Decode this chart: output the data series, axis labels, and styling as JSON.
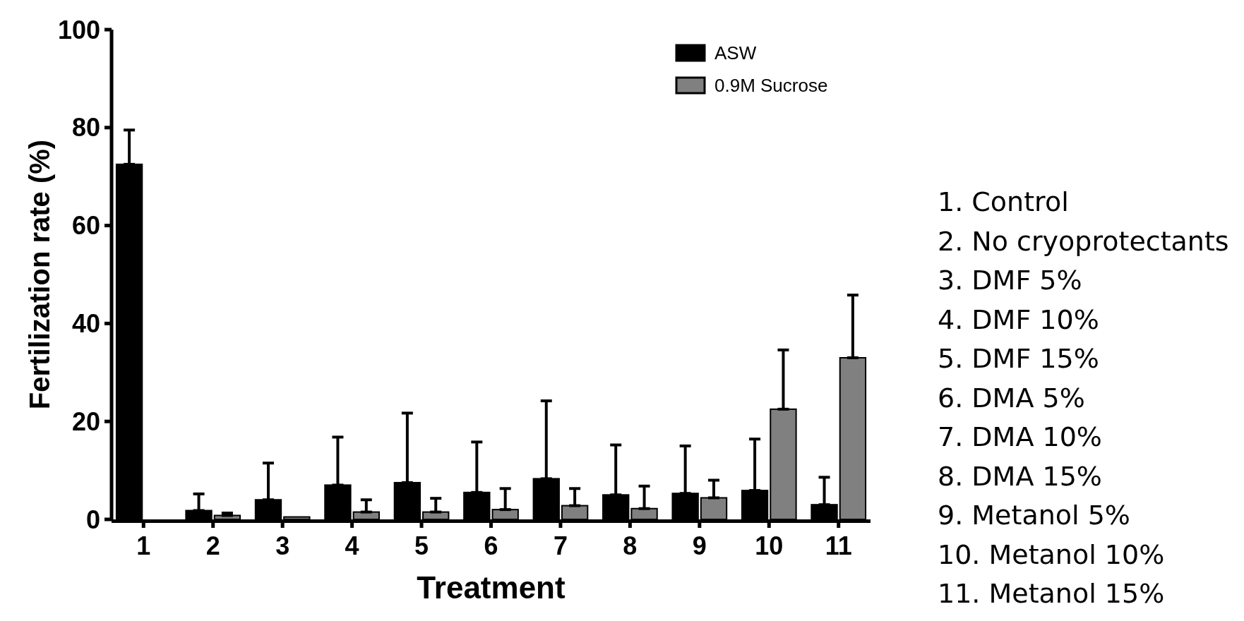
{
  "chart_data": {
    "type": "bar",
    "xlabel": "Treatment",
    "ylabel": "Fertilization rate (%)",
    "categories": [
      "1",
      "2",
      "3",
      "4",
      "5",
      "6",
      "7",
      "8",
      "9",
      "10",
      "11"
    ],
    "series": [
      {
        "name": "ASW",
        "color": "#000000",
        "values": [
          72.5,
          1.8,
          4,
          7,
          7.5,
          5.5,
          8.3,
          5,
          5.3,
          5.9,
          3
        ],
        "errors": [
          [
            72.5,
            79.5
          ],
          [
            1.8,
            5.2
          ],
          [
            4,
            11.5
          ],
          [
            7,
            16.8
          ],
          [
            7.5,
            21.7
          ],
          [
            5.5,
            15.8
          ],
          [
            8.3,
            24.2
          ],
          [
            5,
            15.2
          ],
          [
            5.3,
            15
          ],
          [
            5.9,
            16.4
          ],
          [
            3,
            8.6
          ]
        ]
      },
      {
        "name": "0.9M Sucrose",
        "color": "#808080",
        "values": [
          0,
          0.8,
          0.5,
          1.5,
          1.5,
          2,
          2.8,
          2.2,
          4.4,
          22.5,
          33
        ],
        "errors": [
          null,
          [
            0.8,
            1.3
          ],
          null,
          [
            1.5,
            4
          ],
          [
            1.5,
            4.3
          ],
          [
            2,
            6.3
          ],
          [
            2.8,
            6.3
          ],
          [
            2.2,
            6.8
          ],
          [
            4.4,
            8
          ],
          [
            22.5,
            34.6
          ],
          [
            33,
            45.8
          ]
        ]
      }
    ],
    "ylim": [
      0,
      100
    ],
    "yticks": [
      0,
      20,
      40,
      60,
      80,
      100
    ],
    "legend": "top right",
    "annotations": [
      "1. Control",
      "2. No cryoprotectants",
      "3. DMF 5%",
      "4. DMF 10%",
      "5. DMF 15%",
      "6. DMA 5%",
      "7. DMA 10%",
      "8. DMA 15%",
      "9. Metanol 5%",
      "10. Metanol 10%",
      "11. Metanol 15%"
    ]
  }
}
